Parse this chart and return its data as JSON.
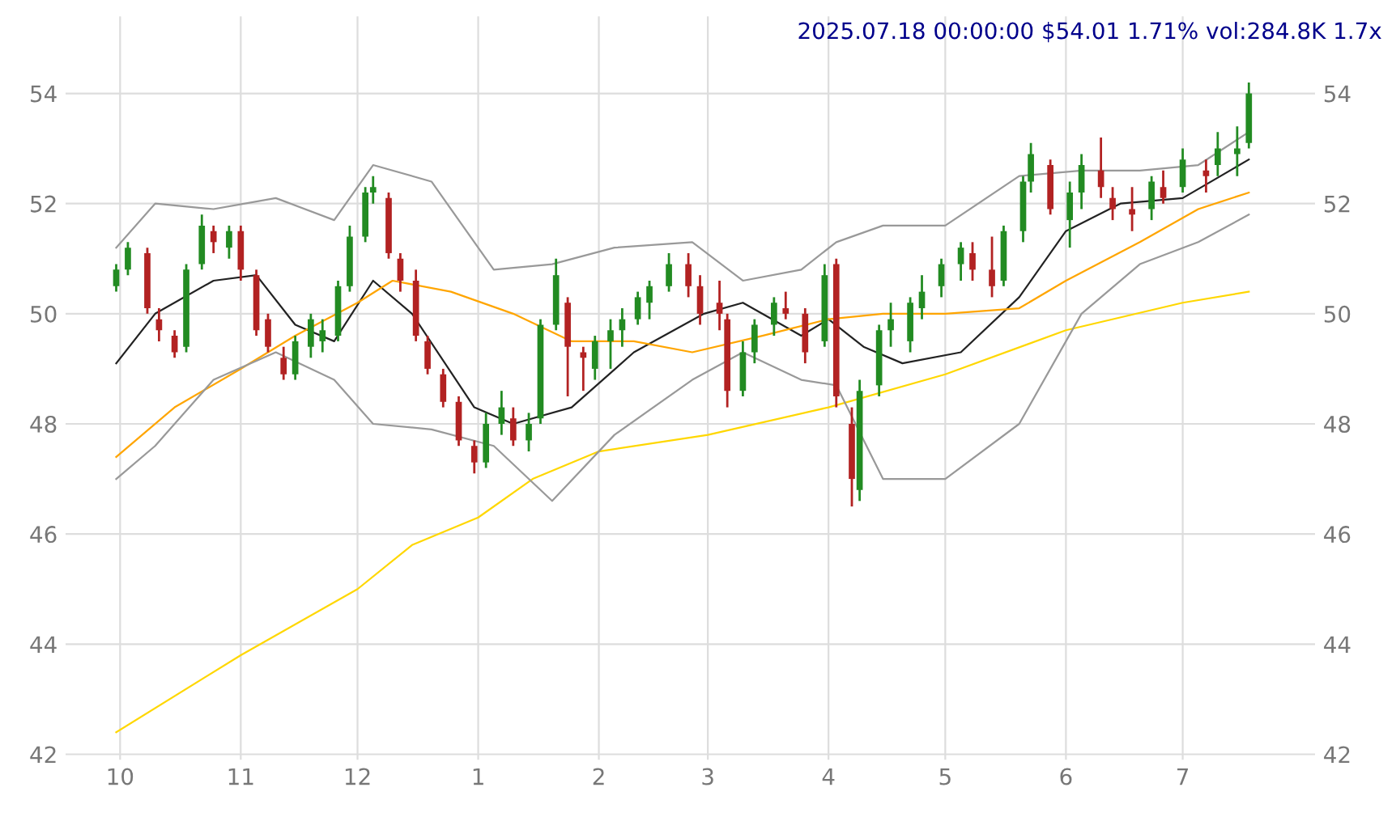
{
  "chart_data": {
    "type": "candlestick",
    "title": "2025.07.18 00:00:00 $54.01 1.71% vol:284.8K 1.7x",
    "xlim": [
      "2024-09-17",
      "2025-08-04"
    ],
    "ylim": [
      41.9,
      55.4
    ],
    "y2lim": [
      41.9,
      55.4
    ],
    "xticks": [
      {
        "value": "2024-10-01",
        "label": "10"
      },
      {
        "value": "2024-11-01",
        "label": "11"
      },
      {
        "value": "2024-12-01",
        "label": "12"
      },
      {
        "value": "2025-01-01",
        "label": "1"
      },
      {
        "value": "2025-02-01",
        "label": "2"
      },
      {
        "value": "2025-03-01",
        "label": "3"
      },
      {
        "value": "2025-04-01",
        "label": "4"
      },
      {
        "value": "2025-05-01",
        "label": "5"
      },
      {
        "value": "2025-06-01",
        "label": "6"
      },
      {
        "value": "2025-07-01",
        "label": "7"
      }
    ],
    "yticks": [
      42,
      44,
      46,
      48,
      50,
      52,
      54
    ],
    "y2ticks": [
      42,
      44,
      46,
      48,
      50,
      52,
      54
    ],
    "grid": true,
    "series": [
      {
        "color": "#228b22",
        "x": [
          "2024-09-30",
          "2024-10-03",
          "2024-10-18",
          "2024-10-22",
          "2024-10-29",
          "2024-11-15",
          "2024-11-19",
          "2024-11-22",
          "2024-11-26",
          "2024-11-29",
          "2024-12-03",
          "2024-12-05",
          "2025-01-03",
          "2025-01-07",
          "2025-01-14",
          "2025-01-17",
          "2025-01-21",
          "2025-01-31",
          "2025-02-04",
          "2025-02-07",
          "2025-02-11",
          "2025-02-14",
          "2025-02-19",
          "2025-03-10",
          "2025-03-13",
          "2025-03-18",
          "2025-03-31",
          "2025-04-09",
          "2025-04-14",
          "2025-04-17",
          "2025-04-22",
          "2025-04-25",
          "2025-04-30",
          "2025-05-05",
          "2025-05-16",
          "2025-05-21",
          "2025-05-23",
          "2025-06-02",
          "2025-06-05",
          "2025-06-23",
          "2025-07-01",
          "2025-07-10",
          "2025-07-15",
          "2025-07-18"
        ],
        "ohlc": [
          [
            50.5,
            50.9,
            50.4,
            50.8
          ],
          [
            50.8,
            51.3,
            50.7,
            51.2
          ],
          [
            49.4,
            50.9,
            49.3,
            50.8
          ],
          [
            50.9,
            51.8,
            50.8,
            51.6
          ],
          [
            51.2,
            51.6,
            51.0,
            51.5
          ],
          [
            48.9,
            49.6,
            48.8,
            49.5
          ],
          [
            49.4,
            50.0,
            49.2,
            49.9
          ],
          [
            49.5,
            49.9,
            49.3,
            49.7
          ],
          [
            49.6,
            50.6,
            49.5,
            50.5
          ],
          [
            50.5,
            51.6,
            50.4,
            51.4
          ],
          [
            51.4,
            52.3,
            51.3,
            52.2
          ],
          [
            52.2,
            52.5,
            52.0,
            52.3
          ],
          [
            47.3,
            48.2,
            47.2,
            48.0
          ],
          [
            48.0,
            48.6,
            47.8,
            48.3
          ],
          [
            47.7,
            48.2,
            47.5,
            48.0
          ],
          [
            48.1,
            49.9,
            48.0,
            49.8
          ],
          [
            49.8,
            51.0,
            49.7,
            50.7
          ],
          [
            49.0,
            49.6,
            48.8,
            49.5
          ],
          [
            49.5,
            49.9,
            49.0,
            49.7
          ],
          [
            49.7,
            50.1,
            49.4,
            49.9
          ],
          [
            49.9,
            50.4,
            49.8,
            50.3
          ],
          [
            50.2,
            50.6,
            49.9,
            50.5
          ],
          [
            50.5,
            51.1,
            50.4,
            50.9
          ],
          [
            48.6,
            49.5,
            48.5,
            49.3
          ],
          [
            49.3,
            49.9,
            49.1,
            49.8
          ],
          [
            49.8,
            50.3,
            49.6,
            50.2
          ],
          [
            49.5,
            50.9,
            49.4,
            50.7
          ],
          [
            46.8,
            48.8,
            46.6,
            48.6
          ],
          [
            48.7,
            49.8,
            48.5,
            49.7
          ],
          [
            49.7,
            50.2,
            49.4,
            49.9
          ],
          [
            49.5,
            50.3,
            49.3,
            50.2
          ],
          [
            50.1,
            50.7,
            49.9,
            50.4
          ],
          [
            50.5,
            51.0,
            50.3,
            50.9
          ],
          [
            50.9,
            51.3,
            50.6,
            51.2
          ],
          [
            50.6,
            51.6,
            50.5,
            51.5
          ],
          [
            51.5,
            52.5,
            51.3,
            52.4
          ],
          [
            52.4,
            53.1,
            52.2,
            52.9
          ],
          [
            51.7,
            52.4,
            51.2,
            52.2
          ],
          [
            52.2,
            52.9,
            51.9,
            52.7
          ],
          [
            51.9,
            52.5,
            51.7,
            52.4
          ],
          [
            52.3,
            53.0,
            52.2,
            52.8
          ],
          [
            52.7,
            53.3,
            52.5,
            53.0
          ],
          [
            52.9,
            53.4,
            52.5,
            53.0
          ],
          [
            53.1,
            54.2,
            53.0,
            54.0
          ]
        ]
      },
      {
        "color": "#b22222",
        "x": [
          "2024-10-08",
          "2024-10-11",
          "2024-10-15",
          "2024-10-25",
          "2024-11-01",
          "2024-11-05",
          "2024-11-08",
          "2024-11-12",
          "2024-12-09",
          "2024-12-12",
          "2024-12-16",
          "2024-12-19",
          "2024-12-23",
          "2024-12-27",
          "2024-12-31",
          "2025-01-10",
          "2025-01-24",
          "2025-01-28",
          "2025-02-24",
          "2025-02-27",
          "2025-03-04",
          "2025-03-06",
          "2025-03-21",
          "2025-03-26",
          "2025-04-03",
          "2025-04-07",
          "2025-05-08",
          "2025-05-13",
          "2025-05-28",
          "2025-06-10",
          "2025-06-13",
          "2025-06-18",
          "2025-06-26",
          "2025-07-07"
        ],
        "ohlc": [
          [
            51.1,
            51.2,
            50.0,
            50.1
          ],
          [
            49.9,
            50.1,
            49.5,
            49.7
          ],
          [
            49.6,
            49.7,
            49.2,
            49.3
          ],
          [
            51.5,
            51.6,
            51.1,
            51.3
          ],
          [
            51.5,
            51.6,
            50.6,
            50.8
          ],
          [
            50.7,
            50.8,
            49.6,
            49.7
          ],
          [
            49.9,
            50.0,
            49.3,
            49.4
          ],
          [
            49.2,
            49.4,
            48.8,
            48.9
          ],
          [
            52.1,
            52.2,
            51.0,
            51.1
          ],
          [
            51.0,
            51.1,
            50.4,
            50.6
          ],
          [
            50.6,
            50.8,
            49.5,
            49.6
          ],
          [
            49.5,
            49.6,
            48.9,
            49.0
          ],
          [
            48.9,
            49.0,
            48.3,
            48.4
          ],
          [
            48.4,
            48.5,
            47.6,
            47.7
          ],
          [
            47.6,
            47.7,
            47.1,
            47.3
          ],
          [
            48.1,
            48.3,
            47.6,
            47.7
          ],
          [
            50.2,
            50.3,
            48.5,
            49.4
          ],
          [
            49.3,
            49.4,
            48.6,
            49.2
          ],
          [
            50.9,
            51.1,
            50.3,
            50.5
          ],
          [
            50.5,
            50.7,
            49.8,
            50.0
          ],
          [
            50.2,
            50.6,
            49.7,
            50.0
          ],
          [
            49.9,
            50.0,
            48.3,
            48.6
          ],
          [
            50.1,
            50.4,
            49.9,
            50.0
          ],
          [
            50.0,
            50.1,
            49.1,
            49.3
          ],
          [
            50.9,
            51.0,
            48.3,
            48.5
          ],
          [
            48.0,
            48.3,
            46.5,
            47.0
          ],
          [
            51.1,
            51.3,
            50.6,
            50.8
          ],
          [
            50.8,
            51.4,
            50.3,
            50.5
          ],
          [
            52.7,
            52.8,
            51.8,
            51.9
          ],
          [
            52.6,
            53.2,
            52.1,
            52.3
          ],
          [
            52.1,
            52.3,
            51.7,
            51.9
          ],
          [
            51.9,
            52.3,
            51.5,
            51.8
          ],
          [
            52.3,
            52.6,
            52.0,
            52.1
          ],
          [
            52.6,
            52.8,
            52.2,
            52.5
          ]
        ]
      },
      {
        "type": "line",
        "color": "#222222",
        "x": [
          "2024-09-30",
          "2024-10-10",
          "2024-10-25",
          "2024-11-05",
          "2024-11-15",
          "2024-11-25",
          "2024-12-05",
          "2024-12-15",
          "2024-12-31",
          "2025-01-10",
          "2025-01-25",
          "2025-02-10",
          "2025-02-28",
          "2025-03-10",
          "2025-03-25",
          "2025-04-01",
          "2025-04-10",
          "2025-04-20",
          "2025-05-05",
          "2025-05-20",
          "2025-06-01",
          "2025-06-15",
          "2025-07-01",
          "2025-07-18"
        ],
        "values": [
          49.1,
          50.0,
          50.6,
          50.7,
          49.8,
          49.5,
          50.6,
          50.0,
          48.3,
          48.0,
          48.3,
          49.3,
          50.0,
          50.2,
          49.6,
          49.9,
          49.4,
          49.1,
          49.3,
          50.3,
          51.5,
          52.0,
          52.1,
          52.8
        ]
      },
      {
        "type": "line",
        "color": "#ffa500",
        "x": [
          "2024-09-30",
          "2024-10-15",
          "2024-11-01",
          "2024-11-15",
          "2024-12-01",
          "2024-12-10",
          "2024-12-25",
          "2025-01-10",
          "2025-01-25",
          "2025-02-10",
          "2025-02-25",
          "2025-03-15",
          "2025-04-01",
          "2025-04-15",
          "2025-05-01",
          "2025-05-20",
          "2025-06-01",
          "2025-06-20",
          "2025-07-05",
          "2025-07-18"
        ],
        "values": [
          47.4,
          48.3,
          49.0,
          49.6,
          50.2,
          50.6,
          50.4,
          50.0,
          49.5,
          49.5,
          49.3,
          49.6,
          49.9,
          50.0,
          50.0,
          50.1,
          50.6,
          51.3,
          51.9,
          52.2
        ]
      },
      {
        "type": "line",
        "color": "#ffd700",
        "x": [
          "2024-09-30",
          "2024-11-01",
          "2024-12-01",
          "2024-12-15",
          "2025-01-01",
          "2025-01-15",
          "2025-02-01",
          "2025-03-01",
          "2025-04-01",
          "2025-05-01",
          "2025-06-01",
          "2025-07-01",
          "2025-07-18"
        ],
        "values": [
          42.4,
          43.8,
          45.0,
          45.8,
          46.3,
          47.0,
          47.5,
          47.8,
          48.3,
          48.9,
          49.7,
          50.2,
          50.4
        ]
      },
      {
        "type": "line",
        "color": "#999999",
        "x": [
          "2024-09-30",
          "2024-10-10",
          "2024-10-25",
          "2024-11-10",
          "2024-11-25",
          "2024-12-05",
          "2024-12-20",
          "2025-01-05",
          "2025-01-20",
          "2025-02-05",
          "2025-02-25",
          "2025-03-10",
          "2025-03-25",
          "2025-04-03",
          "2025-04-15",
          "2025-05-01",
          "2025-05-20",
          "2025-06-05",
          "2025-06-20",
          "2025-07-05",
          "2025-07-18"
        ],
        "values": [
          51.2,
          52.0,
          51.9,
          52.1,
          51.7,
          52.7,
          52.4,
          50.8,
          50.9,
          51.2,
          51.3,
          50.6,
          50.8,
          51.3,
          51.6,
          51.6,
          52.5,
          52.6,
          52.6,
          52.7,
          53.3
        ]
      },
      {
        "type": "line",
        "color": "#999999",
        "x": [
          "2024-09-30",
          "2024-10-10",
          "2024-10-25",
          "2024-11-10",
          "2024-11-25",
          "2024-12-05",
          "2024-12-20",
          "2025-01-05",
          "2025-01-20",
          "2025-02-05",
          "2025-02-25",
          "2025-03-10",
          "2025-03-25",
          "2025-04-03",
          "2025-04-15",
          "2025-05-01",
          "2025-05-20",
          "2025-06-05",
          "2025-06-20",
          "2025-07-05",
          "2025-07-18"
        ],
        "values": [
          47.0,
          47.6,
          48.8,
          49.3,
          48.8,
          48.0,
          47.9,
          47.6,
          46.6,
          47.8,
          48.8,
          49.3,
          48.8,
          48.7,
          47.0,
          47.0,
          48.0,
          50.0,
          50.9,
          51.3,
          51.8
        ]
      }
    ]
  }
}
